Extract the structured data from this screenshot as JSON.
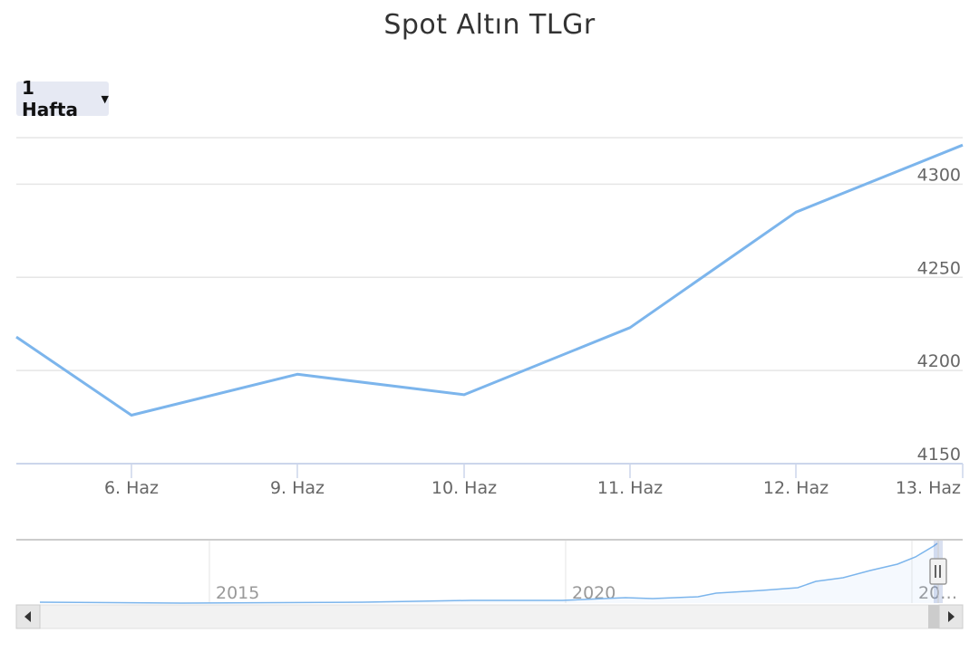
{
  "chart_data": {
    "type": "line",
    "title": "Spot Altın TLGr",
    "range_selector": {
      "label": "1 Hafta"
    },
    "x_ticks": [
      "6. Haz",
      "9. Haz",
      "10. Haz",
      "11. Haz",
      "12. Haz",
      "13. Haz"
    ],
    "y_ticks": [
      4150,
      4200,
      4250,
      4300
    ],
    "ylim": [
      4150,
      4325
    ],
    "series": [
      {
        "color": "#7cb5ec",
        "points": [
          {
            "x": "5. Haz",
            "y": 4218
          },
          {
            "x": "6. Haz",
            "y": 4176
          },
          {
            "x": "9. Haz",
            "y": 4198
          },
          {
            "x": "10. Haz",
            "y": 4187
          },
          {
            "x": "11. Haz",
            "y": 4223
          },
          {
            "x": "12. Haz",
            "y": 4285
          },
          {
            "x": "13. Haz",
            "y": 4321
          }
        ]
      }
    ],
    "grid": true,
    "navigator": {
      "labels": [
        "2015",
        "2020",
        "20…"
      ],
      "color": "#7cb5ec"
    }
  }
}
